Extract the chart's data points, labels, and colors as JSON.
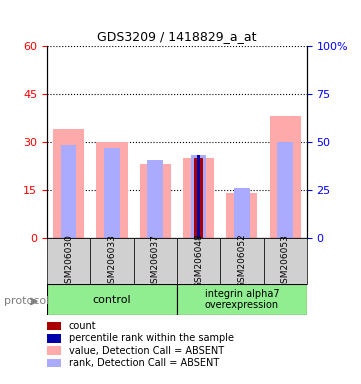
{
  "title": "GDS3209 / 1418829_a_at",
  "samples": [
    "GSM206030",
    "GSM206033",
    "GSM206037",
    "GSM206048",
    "GSM206052",
    "GSM206053"
  ],
  "value_absent": [
    34,
    30,
    23,
    25,
    14,
    38
  ],
  "rank_absent": [
    29,
    28,
    24.5,
    26,
    15.5,
    30
  ],
  "count_bar": [
    0,
    0,
    0,
    25,
    0,
    0
  ],
  "percentile_bar": [
    0,
    0,
    0,
    26,
    0,
    0
  ],
  "ylim_left": [
    0,
    60
  ],
  "ylim_right": [
    0,
    100
  ],
  "yticks_left": [
    0,
    15,
    30,
    45,
    60
  ],
  "yticks_right": [
    0,
    25,
    50,
    75,
    100
  ],
  "yticklabels_right": [
    "0",
    "25",
    "50",
    "75",
    "100%"
  ],
  "control_group": [
    0,
    1,
    2
  ],
  "overexpression_group": [
    3,
    4,
    5
  ],
  "control_label": "control",
  "overexpression_label": "integrin alpha7\noverexpression",
  "protocol_label": "protocol",
  "bar_width": 0.4,
  "color_value_absent": "#ffaaaa",
  "color_rank_absent": "#aaaaff",
  "color_count": "#aa0000",
  "color_percentile": "#0000aa",
  "grid_color": "black",
  "background_plot": "#f0f0f0",
  "background_group": "#c8f0c8",
  "legend_items": [
    {
      "color": "#aa0000",
      "label": "count"
    },
    {
      "color": "#0000aa",
      "label": "percentile rank within the sample"
    },
    {
      "color": "#ffaaaa",
      "label": "value, Detection Call = ABSENT"
    },
    {
      "color": "#aaaaff",
      "label": "rank, Detection Call = ABSENT"
    }
  ]
}
